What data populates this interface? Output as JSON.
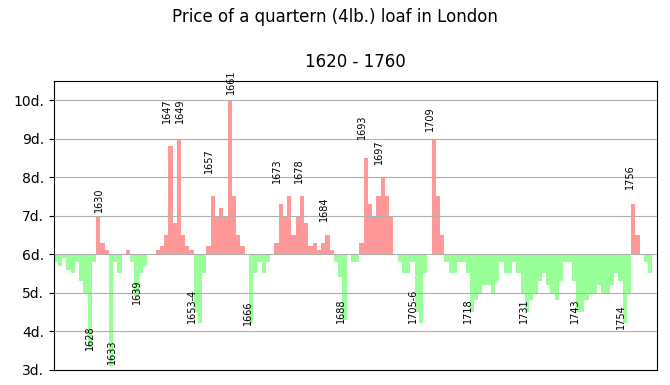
{
  "chart_data": {
    "type": "bar",
    "title": "Price of a quartern (4lb.) loaf in London",
    "subtitle": "1620 - 1760",
    "baseline": 6.0,
    "x": [
      1620,
      1621,
      1622,
      1623,
      1624,
      1625,
      1626,
      1627,
      1628,
      1629,
      1630,
      1631,
      1632,
      1633,
      1634,
      1635,
      1636,
      1637,
      1638,
      1639,
      1640,
      1641,
      1642,
      1643,
      1644,
      1645,
      1646,
      1647,
      1648,
      1649,
      1650,
      1651,
      1652,
      1653,
      1654,
      1655,
      1656,
      1657,
      1658,
      1659,
      1660,
      1661,
      1662,
      1663,
      1664,
      1665,
      1666,
      1667,
      1668,
      1669,
      1670,
      1671,
      1672,
      1673,
      1674,
      1675,
      1676,
      1677,
      1678,
      1679,
      1680,
      1681,
      1682,
      1683,
      1684,
      1685,
      1686,
      1687,
      1688,
      1689,
      1690,
      1691,
      1692,
      1693,
      1694,
      1695,
      1696,
      1697,
      1698,
      1699,
      1700,
      1701,
      1702,
      1703,
      1704,
      1705,
      1706,
      1707,
      1708,
      1709,
      1710,
      1711,
      1712,
      1713,
      1714,
      1715,
      1716,
      1717,
      1718,
      1719,
      1720,
      1721,
      1722,
      1723,
      1724,
      1725,
      1726,
      1727,
      1728,
      1729,
      1730,
      1731,
      1732,
      1733,
      1734,
      1735,
      1736,
      1737,
      1738,
      1739,
      1740,
      1741,
      1742,
      1743,
      1744,
      1745,
      1746,
      1747,
      1748,
      1749,
      1750,
      1751,
      1752,
      1753,
      1754,
      1755,
      1756,
      1757,
      1758,
      1759,
      1760
    ],
    "values": [
      5.8,
      5.7,
      5.9,
      5.6,
      5.5,
      5.8,
      5.3,
      5.0,
      3.6,
      5.8,
      7.0,
      6.3,
      6.1,
      3.1,
      5.8,
      5.5,
      6.0,
      6.1,
      5.8,
      4.9,
      5.5,
      5.7,
      6.0,
      6.0,
      6.1,
      6.2,
      6.5,
      8.8,
      6.8,
      9.0,
      6.5,
      6.2,
      6.1,
      4.5,
      4.2,
      5.5,
      6.2,
      7.5,
      7.0,
      7.2,
      7.0,
      10.0,
      7.5,
      6.5,
      6.2,
      6.0,
      4.2,
      5.5,
      5.8,
      5.5,
      5.8,
      6.0,
      6.3,
      7.3,
      7.0,
      7.5,
      6.5,
      7.0,
      7.5,
      6.8,
      6.2,
      6.3,
      6.1,
      6.3,
      6.5,
      6.1,
      5.8,
      5.4,
      4.3,
      6.0,
      5.8,
      5.8,
      6.3,
      8.5,
      7.3,
      7.0,
      7.5,
      8.0,
      7.5,
      7.0,
      6.0,
      5.8,
      5.5,
      5.5,
      5.8,
      4.5,
      4.2,
      5.5,
      6.0,
      9.0,
      7.5,
      6.5,
      5.8,
      5.5,
      5.5,
      5.8,
      5.8,
      5.5,
      4.5,
      4.8,
      5.0,
      5.2,
      5.2,
      5.0,
      5.3,
      5.8,
      5.5,
      5.5,
      5.8,
      5.5,
      5.0,
      4.5,
      4.8,
      5.0,
      5.3,
      5.5,
      5.2,
      5.0,
      4.8,
      5.3,
      5.8,
      5.8,
      5.3,
      4.5,
      4.5,
      4.8,
      5.0,
      5.0,
      5.2,
      5.0,
      5.0,
      5.2,
      5.5,
      5.3,
      4.2,
      5.0,
      7.3,
      6.5,
      6.0,
      5.8,
      5.5
    ],
    "colors": [
      "#99FF99",
      "#99FF99",
      "#99FF99",
      "#99FF99",
      "#99FF99",
      "#99FF99",
      "#99FF99",
      "#99FF99",
      "#99FF99",
      "#99FF99",
      "#FF9999",
      "#FF9999",
      "#FF9999",
      "#99FF99",
      "#99FF99",
      "#99FF99",
      "#99FF99",
      "#FF9999",
      "#99FF99",
      "#99FF99",
      "#99FF99",
      "#99FF99",
      "#99FF99",
      "#99FF99",
      "#FF9999",
      "#FF9999",
      "#FF9999",
      "#FF9999",
      "#FF9999",
      "#FF9999",
      "#FF9999",
      "#FF9999",
      "#FF9999",
      "#99FF99",
      "#99FF99",
      "#99FF99",
      "#FF9999",
      "#FF9999",
      "#FF9999",
      "#FF9999",
      "#FF9999",
      "#FF9999",
      "#FF9999",
      "#FF9999",
      "#FF9999",
      "#99FF99",
      "#99FF99",
      "#99FF99",
      "#99FF99",
      "#99FF99",
      "#99FF99",
      "#99FF99",
      "#FF9999",
      "#FF9999",
      "#FF9999",
      "#FF9999",
      "#FF9999",
      "#FF9999",
      "#FF9999",
      "#FF9999",
      "#FF9999",
      "#FF9999",
      "#FF9999",
      "#FF9999",
      "#FF9999",
      "#FF9999",
      "#99FF99",
      "#99FF99",
      "#99FF99",
      "#99FF99",
      "#99FF99",
      "#99FF99",
      "#FF9999",
      "#FF9999",
      "#FF9999",
      "#FF9999",
      "#FF9999",
      "#FF9999",
      "#FF9999",
      "#FF9999",
      "#99FF99",
      "#99FF99",
      "#99FF99",
      "#99FF99",
      "#99FF99",
      "#99FF99",
      "#99FF99",
      "#99FF99",
      "#99FF99",
      "#FF9999",
      "#FF9999",
      "#FF9999",
      "#99FF99",
      "#99FF99",
      "#99FF99",
      "#99FF99",
      "#99FF99",
      "#99FF99",
      "#99FF99",
      "#99FF99",
      "#99FF99",
      "#99FF99",
      "#99FF99",
      "#99FF99",
      "#99FF99",
      "#99FF99",
      "#99FF99",
      "#99FF99",
      "#99FF99",
      "#99FF99",
      "#99FF99",
      "#99FF99",
      "#99FF99",
      "#99FF99",
      "#99FF99",
      "#99FF99",
      "#99FF99",
      "#99FF99",
      "#99FF99",
      "#99FF99",
      "#99FF99",
      "#99FF99",
      "#99FF99",
      "#99FF99",
      "#99FF99",
      "#99FF99",
      "#99FF99",
      "#99FF99",
      "#99FF99",
      "#99FF99",
      "#99FF99",
      "#99FF99",
      "#99FF99",
      "#99FF99",
      "#99FF99",
      "#99FF99",
      "#FF9999",
      "#FF9999",
      "#99FF99",
      "#99FF99",
      "#99FF99"
    ],
    "xlim": [
      1619.5,
      1761.5
    ],
    "ylim": [
      3.0,
      10.5
    ],
    "yticks": [
      {
        "value": 3,
        "label": "3d."
      },
      {
        "value": 4,
        "label": "4d."
      },
      {
        "value": 5,
        "label": "5d."
      },
      {
        "value": 6,
        "label": "6d."
      },
      {
        "value": 7,
        "label": "7d."
      },
      {
        "value": 8,
        "label": "8d."
      },
      {
        "value": 9,
        "label": "9d."
      },
      {
        "value": 10,
        "label": "10d."
      }
    ],
    "grid": true,
    "tick_labels": "y",
    "annotations": [
      {
        "text": "1628",
        "x": 1627,
        "y": 3.5
      },
      {
        "text": "1630",
        "x": 1629,
        "y": 7.1
      },
      {
        "text": "1633",
        "x": 1632,
        "y": 3.15
      },
      {
        "text": "1639",
        "x": 1638,
        "y": 4.7
      },
      {
        "text": "1647",
        "x": 1645,
        "y": 9.4
      },
      {
        "text": "1649",
        "x": 1648,
        "y": 9.4
      },
      {
        "text": "1653-4",
        "x": 1651,
        "y": 4.2
      },
      {
        "text": "1657",
        "x": 1655,
        "y": 8.1
      },
      {
        "text": "1661",
        "x": 1660,
        "y": 10.15
      },
      {
        "text": "1666",
        "x": 1664,
        "y": 4.15
      },
      {
        "text": "1673",
        "x": 1671,
        "y": 7.85
      },
      {
        "text": "1678",
        "x": 1676,
        "y": 7.85
      },
      {
        "text": "1684",
        "x": 1682,
        "y": 6.85
      },
      {
        "text": "1688",
        "x": 1686,
        "y": 4.2
      },
      {
        "text": "1693",
        "x": 1691,
        "y": 9.0
      },
      {
        "text": "1697",
        "x": 1695,
        "y": 8.35
      },
      {
        "text": "1705-6",
        "x": 1703,
        "y": 4.2
      },
      {
        "text": "1709",
        "x": 1707,
        "y": 9.2
      },
      {
        "text": "1718",
        "x": 1716,
        "y": 4.2
      },
      {
        "text": "1731",
        "x": 1729,
        "y": 4.2
      },
      {
        "text": "1743",
        "x": 1741,
        "y": 4.2
      },
      {
        "text": "1754",
        "x": 1752,
        "y": 4.05
      },
      {
        "text": "1756",
        "x": 1754,
        "y": 7.7
      }
    ]
  }
}
